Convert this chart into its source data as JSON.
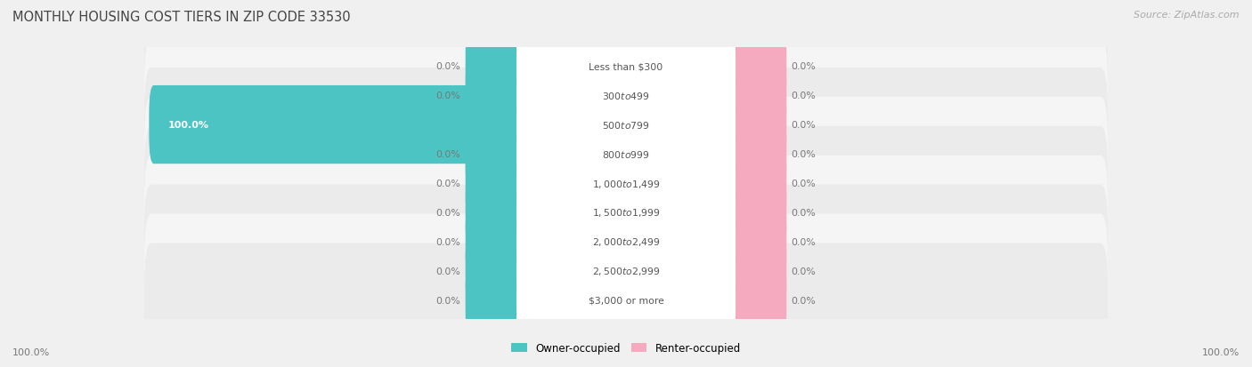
{
  "title": "MONTHLY HOUSING COST TIERS IN ZIP CODE 33530",
  "source": "Source: ZipAtlas.com",
  "categories": [
    "Less than $300",
    "$300 to $499",
    "$500 to $799",
    "$800 to $999",
    "$1,000 to $1,499",
    "$1,500 to $1,999",
    "$2,000 to $2,499",
    "$2,500 to $2,999",
    "$3,000 or more"
  ],
  "owner_values": [
    0.0,
    0.0,
    100.0,
    0.0,
    0.0,
    0.0,
    0.0,
    0.0,
    0.0
  ],
  "renter_values": [
    0.0,
    0.0,
    0.0,
    0.0,
    0.0,
    0.0,
    0.0,
    0.0,
    0.0
  ],
  "owner_color": "#4DC4C4",
  "renter_color": "#F5AABF",
  "bg_color": "#F0F0F0",
  "row_color_odd": "#EBEBEC",
  "row_color_even": "#F5F5F6",
  "title_color": "#444444",
  "label_color": "#555555",
  "source_color": "#AAAAAA",
  "max_val": 100.0,
  "legend_owner": "Owner-occupied",
  "legend_renter": "Renter-occupied",
  "bottom_left_label": "100.0%",
  "bottom_right_label": "100.0%",
  "pill_color": "#FFFFFF",
  "pill_text_color": "#555555",
  "owner_text_color": "#FFFFFF",
  "zero_pct_color": "#777777"
}
